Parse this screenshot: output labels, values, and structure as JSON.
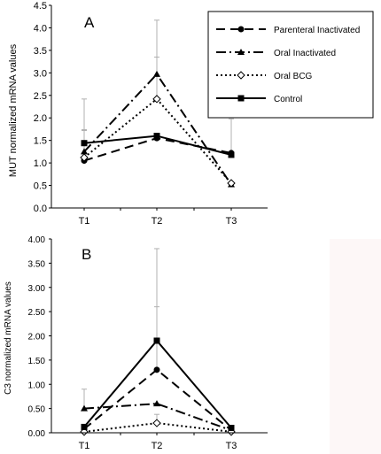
{
  "chart_data": [
    {
      "panel": "A",
      "type": "line",
      "ylabel": "MUT normalized mRNA values",
      "xlabel": "",
      "categories": [
        "T1",
        "T2",
        "T3"
      ],
      "ylim": [
        0,
        4.5
      ],
      "yticks": [
        "0.0",
        "0.5",
        "1.0",
        "1.5",
        "2.0",
        "2.5",
        "3.0",
        "3.5",
        "4.0",
        "4.5"
      ],
      "legend_position": "top-right",
      "series": [
        {
          "name": "Parenteral Inactivated",
          "values": [
            1.05,
            1.55,
            1.22
          ],
          "errors": [
            0,
            0,
            0
          ],
          "dash": "long-dash",
          "marker": "circle",
          "marker_fill": "#000000"
        },
        {
          "name": "Oral Inactivated",
          "values": [
            1.25,
            2.97,
            0.52
          ],
          "errors": [
            1.17,
            1.2,
            0
          ],
          "dash": "dash-dot",
          "marker": "triangle",
          "marker_fill": "#000000"
        },
        {
          "name": "Oral BCG",
          "values": [
            1.12,
            2.42,
            0.55
          ],
          "errors": [
            0.6,
            0.93,
            0
          ],
          "dash": "dotted",
          "marker": "diamond",
          "marker_fill": "#ffffff"
        },
        {
          "name": "Control",
          "values": [
            1.44,
            1.6,
            1.18
          ],
          "errors": [
            0.3,
            0,
            0.8
          ],
          "dash": "solid",
          "marker": "square",
          "marker_fill": "#000000"
        }
      ]
    },
    {
      "panel": "B",
      "type": "line",
      "ylabel": "C3 normalized mRNA values",
      "xlabel": "",
      "categories": [
        "T1",
        "T2",
        "T3"
      ],
      "ylim": [
        0,
        4
      ],
      "yticks": [
        "0.00",
        "0.50",
        "1.00",
        "1.50",
        "2.00",
        "2.50",
        "3.00",
        "3.50",
        "4.00"
      ],
      "legend_position": "none",
      "series": [
        {
          "name": "Parenteral Inactivated",
          "values": [
            0.08,
            1.3,
            0.05
          ],
          "errors": [
            0,
            1.3,
            0
          ],
          "dash": "long-dash",
          "marker": "circle",
          "marker_fill": "#000000"
        },
        {
          "name": "Oral Inactivated",
          "values": [
            0.5,
            0.6,
            0.05
          ],
          "errors": [
            0.4,
            0,
            0
          ],
          "dash": "dash-dot",
          "marker": "triangle",
          "marker_fill": "#000000"
        },
        {
          "name": "Oral BCG",
          "values": [
            0.02,
            0.2,
            0.02
          ],
          "errors": [
            0,
            0.18,
            0
          ],
          "dash": "dotted",
          "marker": "diamond",
          "marker_fill": "#ffffff"
        },
        {
          "name": "Control",
          "values": [
            0.12,
            1.9,
            0.1
          ],
          "errors": [
            0,
            1.9,
            0
          ],
          "dash": "solid",
          "marker": "square",
          "marker_fill": "#000000"
        }
      ]
    }
  ],
  "colors": {
    "line": "#000000",
    "error_bar": "#b0b0b0",
    "background": "#ffffff",
    "side_panel": "#fdf7f7"
  }
}
